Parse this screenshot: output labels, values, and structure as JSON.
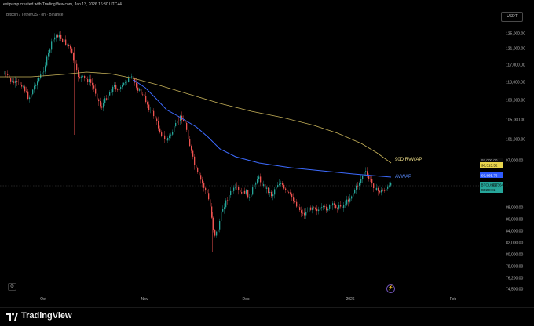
{
  "topbar": {
    "caption": "exitpump created with TradingView.com, Jan 13, 2026 16:30 UTC+4"
  },
  "symbol": {
    "label": "Bitcoin / TetherUS · 8h · Binance"
  },
  "currency": {
    "label": "USDT"
  },
  "annotations": {
    "rvwap": "90D RVWAP",
    "avwap": "AVWAP"
  },
  "tags": {
    "rvwap_price": "97,000.00",
    "rvwap_value": "96,315.52",
    "avwap_value": "93,865.76",
    "pair": "BTCUSDT",
    "last_price": "92,364.53",
    "countdown": "03:29:01"
  },
  "footer": {
    "brand": "TradingView"
  },
  "chart_data": {
    "type": "candlestick",
    "y_axis": {
      "ticks": [
        "125,000.00",
        "121,000.00",
        "117,000.00",
        "113,000.00",
        "109,000.00",
        "105,000.00",
        "101,000.00",
        "97,000.00",
        "88,000.00",
        "86,000.00",
        "84,000.00",
        "82,000.00",
        "80,000.00",
        "78,000.00",
        "76,200.00",
        "74,500.00"
      ]
    },
    "x_axis": {
      "ticks": [
        "Oct",
        "Nov",
        "Dec",
        "2026",
        "Feb"
      ]
    },
    "overlays": [
      "90D RVWAP",
      "AVWAP"
    ],
    "colors": {
      "up": "#26a69a",
      "down": "#ef5350",
      "rvwap": "#c9b45a",
      "avwap": "#3d6bff",
      "last": "#26a69a"
    }
  }
}
